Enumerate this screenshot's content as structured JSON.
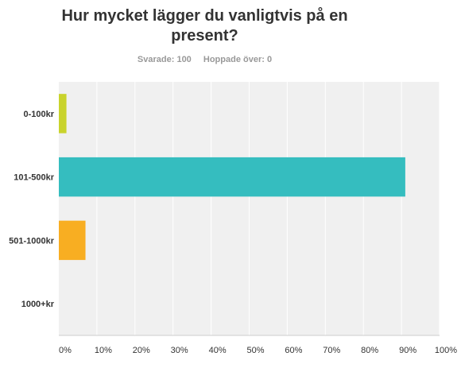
{
  "title_line1": "Hur mycket lägger du vanligtvis på en",
  "title_line2": "present?",
  "stats": {
    "answered": "Svarade: 100",
    "skipped": "Hoppade över: 0"
  },
  "chart_data": {
    "type": "bar",
    "orientation": "horizontal",
    "categories": [
      "0-100kr",
      "101-500kr",
      "501-1000kr",
      "1000+kr"
    ],
    "values": [
      2,
      91,
      7,
      0
    ],
    "colors": [
      "#c9d32c",
      "#35bdbf",
      "#f8ae22",
      "#f8ae22"
    ],
    "xlim": [
      0,
      100
    ],
    "x_ticks": [
      "0%",
      "10%",
      "20%",
      "30%",
      "40%",
      "50%",
      "60%",
      "70%",
      "80%",
      "90%",
      "100%"
    ],
    "grid": true,
    "plot_background": "#f0f0f0"
  }
}
